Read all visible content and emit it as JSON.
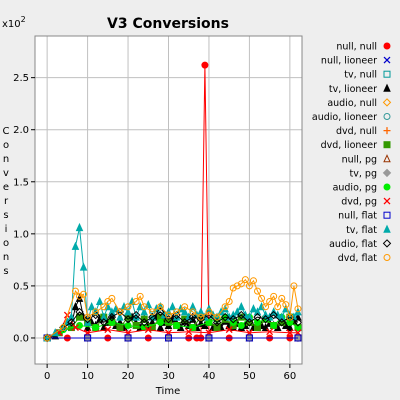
{
  "chart_data": {
    "type": "line",
    "title": "V3 Conversions",
    "xlabel": "Time",
    "ylabel": "Conversions",
    "y_multiplier": "x10",
    "y_multiplier_exp": "2",
    "xlim": [
      -3,
      63
    ],
    "ylim": [
      -0.25,
      2.9
    ],
    "xticks": [
      "0",
      "10",
      "20",
      "30",
      "40",
      "50",
      "60"
    ],
    "yticks": [
      "0.0",
      "0.5",
      "1.0",
      "1.5",
      "2.0",
      "2.5"
    ],
    "grid": true,
    "legend_position": "right",
    "series": [
      {
        "name": "null, null",
        "color": "#ff0000",
        "marker": "circle-filled",
        "x": [
          0,
          5,
          10,
          15,
          20,
          25,
          30,
          35,
          37,
          38,
          39,
          40,
          45,
          50,
          55,
          60,
          62
        ],
        "y": [
          0,
          0,
          0,
          0,
          0,
          0,
          0,
          0,
          0,
          0,
          2.62,
          0,
          0,
          0,
          0,
          0,
          0
        ]
      },
      {
        "name": "null, lioneer",
        "color": "#0000cc",
        "marker": "x",
        "x": [
          0,
          10,
          20,
          30,
          40,
          50,
          62
        ],
        "y": [
          0,
          0,
          0,
          0,
          0,
          0,
          0
        ]
      },
      {
        "name": "tv, null",
        "color": "#009999",
        "marker": "square-open",
        "x": [
          0,
          10,
          20,
          30,
          40,
          50,
          62
        ],
        "y": [
          0,
          0,
          0,
          0,
          0,
          0,
          0
        ]
      },
      {
        "name": "tv, lioneer",
        "color": "#000000",
        "marker": "triangle-filled",
        "x": [
          0,
          2,
          4,
          5,
          6,
          7,
          8,
          9,
          10,
          11,
          12,
          13,
          14,
          15,
          16,
          17,
          18,
          19,
          20,
          21,
          22,
          23,
          24,
          25,
          26,
          27,
          28,
          29,
          30,
          31,
          32,
          33,
          34,
          35,
          36,
          37,
          38,
          39,
          40,
          41,
          42,
          43,
          44,
          45,
          46,
          47,
          48,
          49,
          50,
          51,
          52,
          53,
          54,
          55,
          56,
          57,
          58,
          59,
          60,
          61,
          62
        ],
        "y": [
          0,
          0.02,
          0.1,
          0.15,
          0.12,
          0.3,
          0.38,
          0.2,
          0.1,
          0.15,
          0.12,
          0.18,
          0.1,
          0.15,
          0.2,
          0.12,
          0.15,
          0.1,
          0.13,
          0.2,
          0.14,
          0.1,
          0.18,
          0.12,
          0.15,
          0.2,
          0.1,
          0.15,
          0.12,
          0.18,
          0.14,
          0.1,
          0.16,
          0.12,
          0.18,
          0.1,
          0.14,
          0.12,
          0.15,
          0.1,
          0.13,
          0.1,
          0.16,
          0.12,
          0.1,
          0.14,
          0.1,
          0.12,
          0.15,
          0.1,
          0.13,
          0.12,
          0.1,
          0.14,
          0.12,
          0.1,
          0.15,
          0.12,
          0.1,
          0.16,
          0.2
        ]
      },
      {
        "name": "audio, null",
        "color": "#ff9900",
        "marker": "diamond-open",
        "x": [
          0,
          10,
          20,
          30,
          40,
          50,
          62
        ],
        "y": [
          0,
          0,
          0,
          0,
          0,
          0,
          0
        ]
      },
      {
        "name": "audio, lioneer",
        "color": "#339999",
        "marker": "circle-open",
        "x": [
          0,
          10,
          20,
          30,
          40,
          50,
          62
        ],
        "y": [
          0,
          0,
          0,
          0,
          0,
          0,
          0
        ]
      },
      {
        "name": "dvd, null",
        "color": "#ff6600",
        "marker": "plus",
        "x": [
          0,
          10,
          20,
          30,
          40,
          50,
          62
        ],
        "y": [
          0,
          0,
          0,
          0,
          0,
          0,
          0
        ]
      },
      {
        "name": "dvd, lioneer",
        "color": "#339900",
        "marker": "square-filled",
        "x": [
          0,
          3,
          6,
          8,
          10,
          12,
          14,
          16,
          18,
          20,
          22,
          24,
          26,
          28,
          30,
          32,
          34,
          36,
          38,
          40,
          42,
          44,
          46,
          48,
          50,
          52,
          54,
          56,
          58,
          60,
          62
        ],
        "y": [
          0,
          0.05,
          0.1,
          0.2,
          0.15,
          0.1,
          0.2,
          0.15,
          0.1,
          0.2,
          0.12,
          0.18,
          0.1,
          0.2,
          0.15,
          0.12,
          0.18,
          0.1,
          0.2,
          0.15,
          0.1,
          0.18,
          0.12,
          0.2,
          0.15,
          0.1,
          0.18,
          0.12,
          0.15,
          0.2,
          0.1
        ]
      },
      {
        "name": "null, pg",
        "color": "#993300",
        "marker": "triangle-open",
        "x": [
          0,
          10,
          20,
          30,
          40,
          50,
          62
        ],
        "y": [
          0,
          0,
          0,
          0,
          0,
          0,
          0
        ]
      },
      {
        "name": "tv, pg",
        "color": "#999999",
        "marker": "diamond-filled",
        "x": [
          0,
          10,
          20,
          30,
          40,
          50,
          62
        ],
        "y": [
          0,
          0,
          0,
          0,
          0,
          0,
          0
        ]
      },
      {
        "name": "audio, pg",
        "color": "#00ee00",
        "marker": "circle-filled",
        "x": [
          0,
          4,
          8,
          12,
          16,
          20,
          24,
          28,
          32,
          36,
          40,
          42,
          44,
          46,
          48,
          50,
          52,
          54,
          56,
          58,
          60,
          62
        ],
        "y": [
          0,
          0.08,
          0.12,
          0.1,
          0.15,
          0.12,
          0.1,
          0.15,
          0.12,
          0.1,
          0.15,
          0.18,
          0.2,
          0.15,
          0.12,
          0.2,
          0.15,
          0.18,
          0.12,
          0.2,
          0.15,
          0.1
        ]
      },
      {
        "name": "dvd, pg",
        "color": "#ff0000",
        "marker": "x",
        "x": [
          0,
          3,
          5,
          7,
          10,
          15,
          20,
          25,
          30,
          35,
          40,
          45,
          50,
          55,
          60,
          62
        ],
        "y": [
          0,
          0.05,
          0.22,
          0.1,
          0.05,
          0.08,
          0.05,
          0.08,
          0.05,
          0.06,
          0.05,
          0.08,
          0.05,
          0.06,
          0.05,
          0.05
        ]
      },
      {
        "name": "null, flat",
        "color": "#0000cc",
        "marker": "square-open",
        "x": [
          0,
          10,
          20,
          30,
          40,
          50,
          62
        ],
        "y": [
          0,
          0,
          0,
          0,
          0,
          0,
          0
        ]
      },
      {
        "name": "tv, flat",
        "color": "#00aaaa",
        "marker": "triangle-filled",
        "x": [
          0,
          2,
          4,
          5,
          6,
          7,
          8,
          9,
          10,
          11,
          12,
          13,
          14,
          15,
          16,
          17,
          18,
          19,
          20,
          21,
          22,
          23,
          24,
          25,
          26,
          27,
          28,
          29,
          30,
          31,
          32,
          33,
          34,
          35,
          36,
          37,
          38,
          39,
          40,
          41,
          42,
          43,
          44,
          45,
          46,
          47,
          48,
          49,
          50,
          51,
          52,
          53,
          54,
          55,
          56,
          57,
          58,
          59,
          60,
          61,
          62
        ],
        "y": [
          0,
          0.05,
          0.1,
          0.15,
          0.2,
          0.88,
          1.06,
          0.68,
          0.15,
          0.3,
          0.25,
          0.35,
          0.2,
          0.3,
          0.25,
          0.28,
          0.2,
          0.3,
          0.25,
          0.35,
          0.2,
          0.3,
          0.25,
          0.32,
          0.2,
          0.28,
          0.3,
          0.22,
          0.25,
          0.3,
          0.2,
          0.28,
          0.25,
          0.2,
          0.3,
          0.22,
          0.25,
          0.2,
          0.28,
          0.22,
          0.2,
          0.25,
          0.28,
          0.2,
          0.22,
          0.25,
          0.3,
          0.22,
          0.2,
          0.28,
          0.25,
          0.3,
          0.22,
          0.2,
          0.25,
          0.22,
          0.2,
          0.28,
          0.22,
          0.2,
          0.25
        ]
      },
      {
        "name": "audio, flat",
        "color": "#000000",
        "marker": "diamond-open",
        "x": [
          0,
          4,
          6,
          8,
          10,
          12,
          14,
          16,
          18,
          20,
          22,
          24,
          26,
          28,
          30,
          32,
          34,
          36,
          38,
          40,
          42,
          44,
          46,
          48,
          50,
          52,
          54,
          56,
          58,
          60,
          62
        ],
        "y": [
          0,
          0.1,
          0.15,
          0.25,
          0.18,
          0.22,
          0.15,
          0.2,
          0.25,
          0.18,
          0.22,
          0.15,
          0.2,
          0.25,
          0.18,
          0.22,
          0.15,
          0.2,
          0.18,
          0.22,
          0.15,
          0.2,
          0.18,
          0.22,
          0.15,
          0.2,
          0.18,
          0.22,
          0.15,
          0.2,
          0.15
        ]
      },
      {
        "name": "dvd, flat",
        "color": "#ff9900",
        "marker": "circle-open",
        "x": [
          0,
          4,
          7,
          8,
          9,
          10,
          12,
          14,
          15,
          16,
          18,
          20,
          22,
          23,
          24,
          26,
          28,
          30,
          32,
          34,
          36,
          38,
          40,
          42,
          44,
          45,
          46,
          47,
          48,
          49,
          50,
          51,
          52,
          53,
          54,
          55,
          56,
          57,
          58,
          59,
          60,
          61,
          62
        ],
        "y": [
          0,
          0.1,
          0.45,
          0.4,
          0.42,
          0.2,
          0.25,
          0.3,
          0.35,
          0.38,
          0.25,
          0.3,
          0.35,
          0.4,
          0.3,
          0.25,
          0.3,
          0.22,
          0.25,
          0.3,
          0.25,
          0.2,
          0.25,
          0.2,
          0.3,
          0.35,
          0.48,
          0.5,
          0.52,
          0.56,
          0.5,
          0.55,
          0.45,
          0.38,
          0.3,
          0.35,
          0.4,
          0.3,
          0.38,
          0.32,
          0.2,
          0.5,
          0.28
        ]
      }
    ]
  }
}
